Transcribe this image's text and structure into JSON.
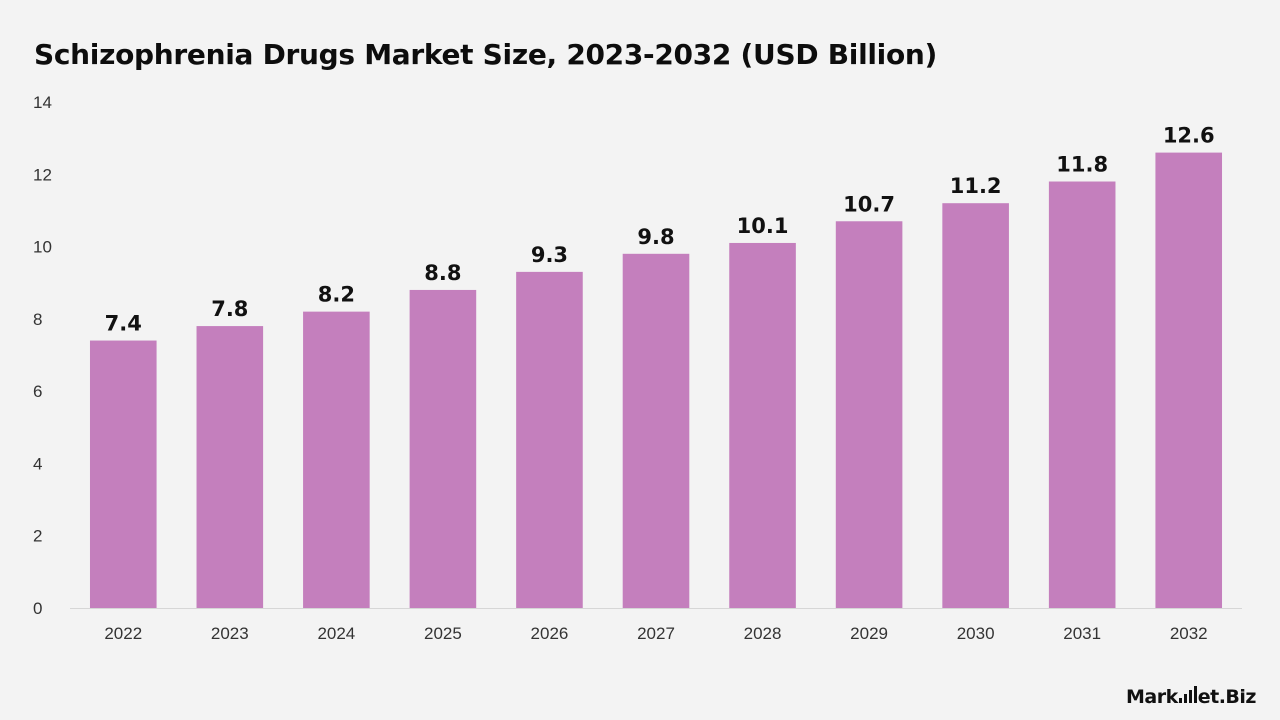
{
  "chart_data": {
    "type": "bar",
    "title": "Schizophrenia Drugs Market Size, 2023-2032 (USD Billion)",
    "xlabel": "",
    "ylabel": "",
    "categories": [
      "2022",
      "2023",
      "2024",
      "2025",
      "2026",
      "2027",
      "2028",
      "2029",
      "2030",
      "2031",
      "2032"
    ],
    "values": [
      7.4,
      7.8,
      8.2,
      8.8,
      9.3,
      9.8,
      10.1,
      10.7,
      11.2,
      11.8,
      12.6
    ],
    "ylim": [
      0,
      14
    ],
    "yticks": [
      0,
      2,
      4,
      6,
      8,
      10,
      12,
      14
    ],
    "grid": false,
    "data_labels": true,
    "bar_color": "#c47fbd",
    "background_color": "#f3f3f3"
  },
  "branding": {
    "logo_text": "Market.Biz"
  }
}
